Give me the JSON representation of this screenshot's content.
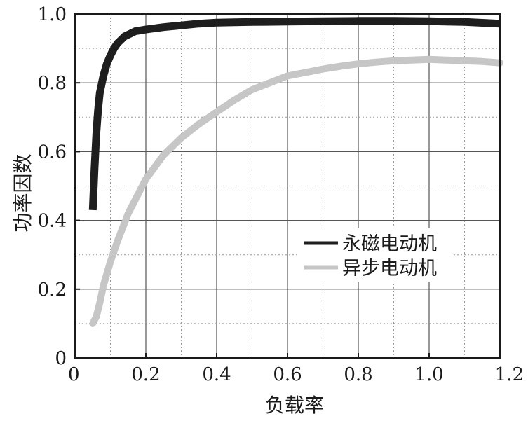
{
  "chart_data": {
    "type": "line",
    "xlabel": "负载率",
    "ylabel": "功率因数",
    "xlim": [
      0,
      1.2
    ],
    "ylim": [
      0,
      1.0
    ],
    "x_ticks": [
      "0",
      "0.2",
      "0.4",
      "0.6",
      "0.8",
      "1.0",
      "1.2"
    ],
    "y_ticks": [
      "0",
      "0.2",
      "0.4",
      "0.6",
      "0.8",
      "1.0"
    ],
    "grid": true,
    "legend_position": "center-right",
    "series": [
      {
        "name": "永磁电动机",
        "color": "#1e1e1e",
        "x": [
          0.05,
          0.055,
          0.06,
          0.065,
          0.07,
          0.08,
          0.09,
          0.1,
          0.11,
          0.12,
          0.13,
          0.14,
          0.15,
          0.17,
          0.2,
          0.25,
          0.3,
          0.35,
          0.4,
          0.5,
          0.6,
          0.7,
          0.8,
          0.9,
          1.0,
          1.1,
          1.2
        ],
        "y": [
          0.43,
          0.55,
          0.65,
          0.72,
          0.77,
          0.82,
          0.855,
          0.88,
          0.9,
          0.915,
          0.925,
          0.935,
          0.94,
          0.95,
          0.955,
          0.962,
          0.967,
          0.972,
          0.975,
          0.977,
          0.978,
          0.979,
          0.98,
          0.98,
          0.979,
          0.977,
          0.972
        ]
      },
      {
        "name": "异步电动机",
        "color": "#c6c6c6",
        "x": [
          0.05,
          0.06,
          0.07,
          0.08,
          0.1,
          0.12,
          0.15,
          0.18,
          0.2,
          0.25,
          0.3,
          0.35,
          0.4,
          0.45,
          0.5,
          0.55,
          0.6,
          0.65,
          0.7,
          0.75,
          0.8,
          0.85,
          0.9,
          0.95,
          1.0,
          1.05,
          1.1,
          1.15,
          1.2
        ],
        "y": [
          0.1,
          0.12,
          0.16,
          0.21,
          0.28,
          0.34,
          0.42,
          0.48,
          0.52,
          0.59,
          0.64,
          0.68,
          0.715,
          0.75,
          0.78,
          0.8,
          0.82,
          0.83,
          0.84,
          0.848,
          0.855,
          0.86,
          0.864,
          0.866,
          0.868,
          0.866,
          0.864,
          0.862,
          0.858
        ]
      }
    ]
  }
}
